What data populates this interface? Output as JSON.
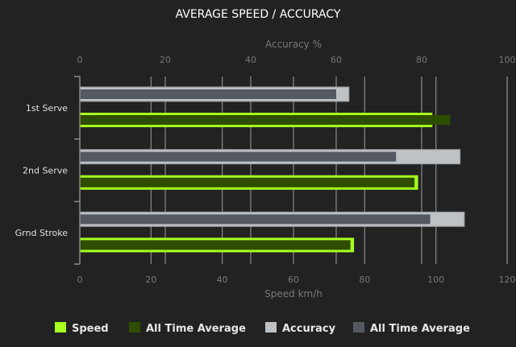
{
  "chart_data": {
    "type": "bar",
    "orientation": "horizontal",
    "title": "AVERAGE SPEED / ACCURACY",
    "categories": [
      "1st Serve",
      "2nd Serve",
      "Grnd Stroke"
    ],
    "top_axis": {
      "label": "Accuracy %",
      "range": [
        0,
        100
      ],
      "ticks": [
        0,
        20,
        40,
        60,
        80,
        100
      ]
    },
    "bottom_axis": {
      "label": "Speed km/h",
      "range": [
        0,
        120
      ],
      "ticks": [
        0,
        20,
        40,
        60,
        80,
        100,
        120
      ]
    },
    "series": [
      {
        "name": "Speed",
        "axis": "bottom",
        "color": "#a6ff1f",
        "values": [
          99,
          95,
          77
        ]
      },
      {
        "name": "All Time Average",
        "axis": "bottom",
        "color": "#2f4d00",
        "values": [
          104,
          94,
          76
        ]
      },
      {
        "name": "Accuracy",
        "axis": "top",
        "color": "#bec2c5",
        "values": [
          63,
          89,
          90
        ]
      },
      {
        "name": "All Time Average",
        "axis": "top",
        "color": "#545961",
        "values": [
          60,
          74,
          82
        ]
      }
    ],
    "grid": true,
    "legend": "bottom"
  }
}
